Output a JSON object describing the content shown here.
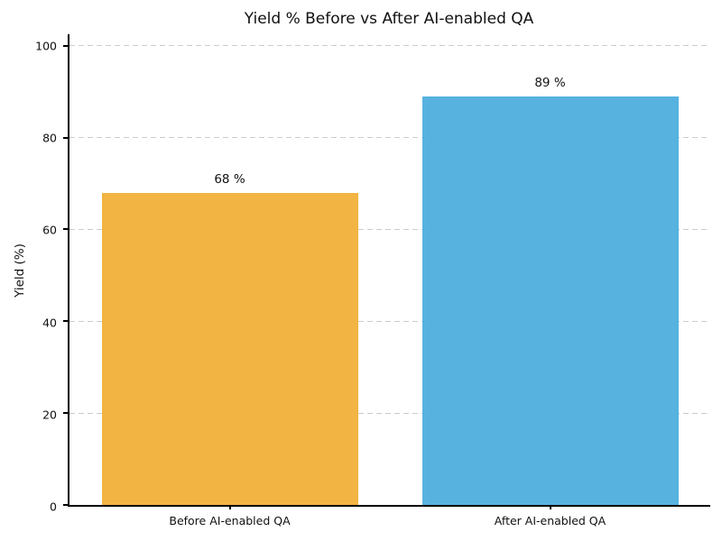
{
  "chart_data": {
    "type": "bar",
    "title": "Yield % Before vs After AI-enabled QA",
    "xlabel": "",
    "ylabel": "Yield (%)",
    "categories": [
      "Before AI-enabled QA",
      "After AI-enabled QA"
    ],
    "values": [
      68,
      89
    ],
    "value_labels": [
      "68 %",
      "89 %"
    ],
    "bar_colors": [
      "#F2B442",
      "#57B2E0"
    ],
    "yticks": [
      0,
      20,
      40,
      60,
      80,
      100
    ],
    "ylim": [
      0,
      102.5
    ],
    "grid": "horizontal dashed",
    "grid_color": "#cccccc",
    "legend": "none",
    "background_color": "#ffffff",
    "text_color": "#111111",
    "spines": [
      "left",
      "bottom"
    ]
  }
}
